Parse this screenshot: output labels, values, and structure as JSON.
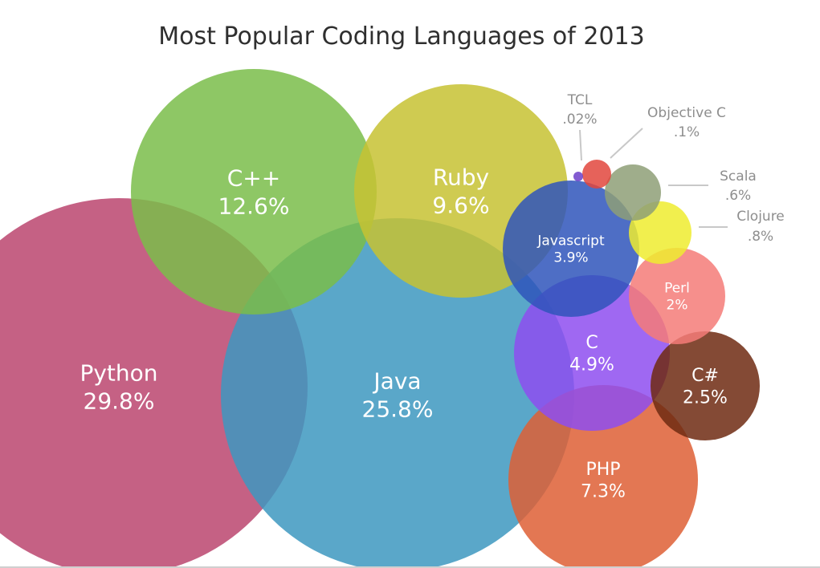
{
  "chart_data": {
    "type": "bubble",
    "title": "Most Popular Coding Languages of 2013",
    "unit": "%",
    "series": [
      {
        "name": "Python",
        "display": "29.8%",
        "value": 29.8,
        "color": "#bb456f"
      },
      {
        "name": "Java",
        "display": "25.8%",
        "value": 25.8,
        "color": "#3d98bf"
      },
      {
        "name": "C++",
        "display": "12.6%",
        "value": 12.6,
        "color": "#7abd4a"
      },
      {
        "name": "Ruby",
        "display": "9.6%",
        "value": 9.6,
        "color": "#c7c232"
      },
      {
        "name": "PHP",
        "display": "7.3%",
        "value": 7.3,
        "color": "#de5f35"
      },
      {
        "name": "C",
        "display": "4.9%",
        "value": 4.9,
        "color": "#8e4df0"
      },
      {
        "name": "Javascript",
        "display": "3.9%",
        "value": 3.9,
        "color": "#2f55bb"
      },
      {
        "name": "C#",
        "display": "2.5%",
        "value": 2.5,
        "color": "#6e2a12"
      },
      {
        "name": "Perl",
        "display": "2%",
        "value": 2.0,
        "color": "#f57b78"
      },
      {
        "name": "Clojure",
        "display": ".8%",
        "value": 0.8,
        "color": "#efec2f"
      },
      {
        "name": "Scala",
        "display": ".6%",
        "value": 0.6,
        "color": "#8e9f77"
      },
      {
        "name": "Objective C",
        "display": ".1%",
        "value": 0.1,
        "color": "#e2473d"
      },
      {
        "name": "TCL",
        "display": ".02%",
        "value": 0.02,
        "color": "#6d3fc9"
      }
    ]
  }
}
